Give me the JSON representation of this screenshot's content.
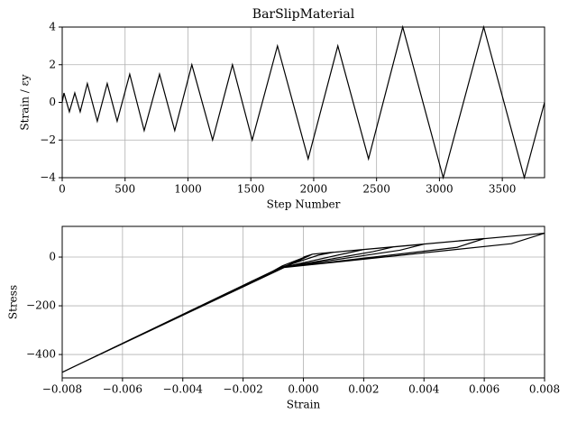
{
  "chart_data": [
    {
      "type": "line",
      "title": "BarSlipMaterial",
      "x_label": "Step Number",
      "y_label": "Strain / εy",
      "color": "#000000",
      "grid": true,
      "x": [
        0,
        14,
        57,
        100,
        143,
        200,
        279,
        358,
        437,
        537,
        652,
        774,
        895,
        1031,
        1196,
        1354,
        1511,
        1712,
        1956,
        2192,
        2436,
        2708,
        3030,
        3352,
        3675,
        3836
      ],
      "values": [
        0,
        0.5,
        -0.5,
        0.5,
        -0.5,
        1,
        -1,
        1,
        -1,
        1.5,
        -1.5,
        1.5,
        -1.5,
        2,
        -2,
        2,
        -2,
        3,
        -3,
        3,
        -3,
        4,
        -4,
        4,
        -4,
        0
      ],
      "xlim": [
        0,
        3836
      ],
      "xticks": [
        0,
        500,
        1000,
        1500,
        2000,
        2500,
        3000,
        3500
      ],
      "ylim": [
        -4,
        4
      ],
      "yticks": [
        {
          "value": -4,
          "label": "−4"
        },
        {
          "value": -2,
          "label": "−2"
        },
        0,
        2,
        4
      ]
    },
    {
      "type": "line",
      "x_label": "Strain",
      "y_label": "Stress",
      "color": "#000000",
      "grid": true,
      "x": [
        0,
        0.0003,
        0.001,
        0.0005,
        -0.0008,
        -0.001,
        -0.0007,
        0.0003,
        0.002,
        0.0014,
        -0.0008,
        -0.002,
        -0.0017,
        0.0003,
        0.003,
        0.0023,
        -0.0008,
        -0.003,
        -0.0027,
        0.0003,
        0.004,
        0.0032,
        -0.0008,
        -0.004,
        -0.0037,
        0.0003,
        0.006,
        0.0051,
        -0.0008,
        -0.006,
        -0.0057,
        0.0003,
        0.008,
        0.0069,
        -0.0008,
        -0.008,
        -0.0077,
        0.0003,
        0.008
      ],
      "values": [
        0,
        12,
        20,
        8,
        -45,
        -57,
        -36,
        12,
        31,
        15,
        -45,
        -116,
        -98,
        12,
        42,
        22,
        -45,
        -176,
        -158,
        12,
        53,
        28,
        -45,
        -235,
        -217,
        12,
        76,
        40,
        -45,
        -354,
        -336,
        12,
        98,
        55,
        -45,
        -473,
        -455,
        12,
        98
      ],
      "xlim": [
        -0.008,
        0.008
      ],
      "xticks": [
        {
          "value": -0.008,
          "label": "−0.008"
        },
        {
          "value": -0.006,
          "label": "−0.006"
        },
        {
          "value": -0.004,
          "label": "−0.004"
        },
        {
          "value": -0.002,
          "label": "−0.002"
        },
        {
          "value": 0,
          "label": "0.000"
        },
        {
          "value": 0.002,
          "label": "0.002"
        },
        {
          "value": 0.004,
          "label": "0.004"
        },
        {
          "value": 0.006,
          "label": "0.006"
        },
        {
          "value": 0.008,
          "label": "0.008"
        }
      ],
      "ylim": [
        -496,
        126
      ],
      "yticks": [
        {
          "value": -400,
          "label": "−400"
        },
        {
          "value": -200,
          "label": "−200"
        },
        0
      ]
    }
  ]
}
